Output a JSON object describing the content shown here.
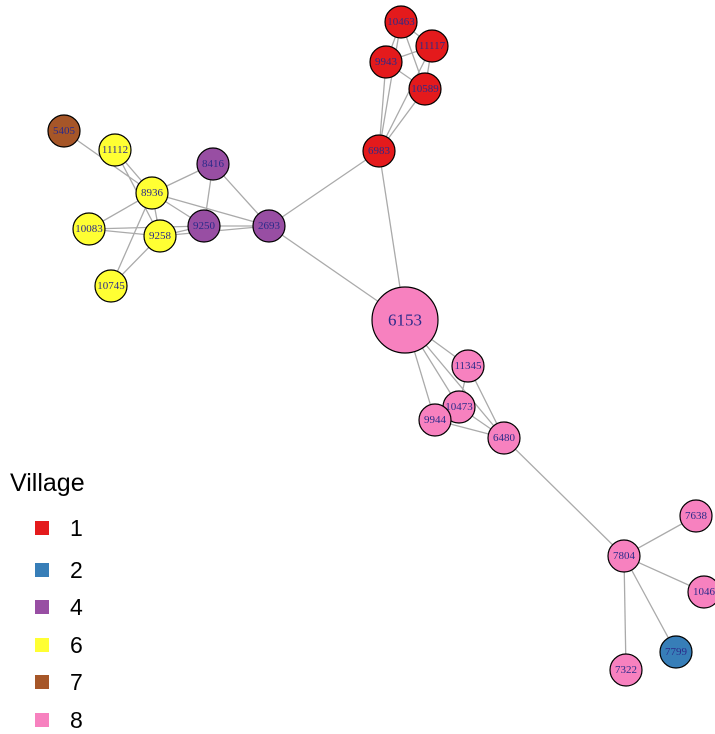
{
  "nodes": [
    {
      "label": "10463",
      "color": "#e41a1c"
    },
    {
      "label": "11117",
      "color": "#e41a1c"
    },
    {
      "label": "9943",
      "color": "#e41a1c"
    },
    {
      "label": "10589",
      "color": "#e41a1c"
    },
    {
      "label": "6983",
      "color": "#e41a1c"
    },
    {
      "label": "6153",
      "color": "#f781bf"
    },
    {
      "label": "11345",
      "color": "#f781bf"
    },
    {
      "label": "10473",
      "color": "#f781bf"
    },
    {
      "label": "9944",
      "color": "#f781bf"
    },
    {
      "label": "6480",
      "color": "#f781bf"
    },
    {
      "label": "7804",
      "color": "#f781bf"
    },
    {
      "label": "7638",
      "color": "#f781bf"
    },
    {
      "label": "1046",
      "color": "#f781bf"
    },
    {
      "label": "7322",
      "color": "#f781bf"
    },
    {
      "label": "7799",
      "color": "#377eb8"
    },
    {
      "label": "8416",
      "color": "#984ea3"
    },
    {
      "label": "9250",
      "color": "#984ea3"
    },
    {
      "label": "2693",
      "color": "#984ea3"
    },
    {
      "label": "11112",
      "color": "#ffff33"
    },
    {
      "label": "8936",
      "color": "#ffff33"
    },
    {
      "label": "10083",
      "color": "#ffff33"
    },
    {
      "label": "9258",
      "color": "#ffff33"
    },
    {
      "label": "10745",
      "color": "#ffff33"
    },
    {
      "label": "5405",
      "color": "#a65628"
    }
  ],
  "legend": {
    "title": "Village",
    "items": [
      {
        "label": "1",
        "color": "#e41a1c"
      },
      {
        "label": "2",
        "color": "#377eb8"
      },
      {
        "label": "4",
        "color": "#984ea3"
      },
      {
        "label": "6",
        "color": "#ffff33"
      },
      {
        "label": "7",
        "color": "#a65628"
      },
      {
        "label": "8",
        "color": "#f781bf"
      }
    ]
  }
}
